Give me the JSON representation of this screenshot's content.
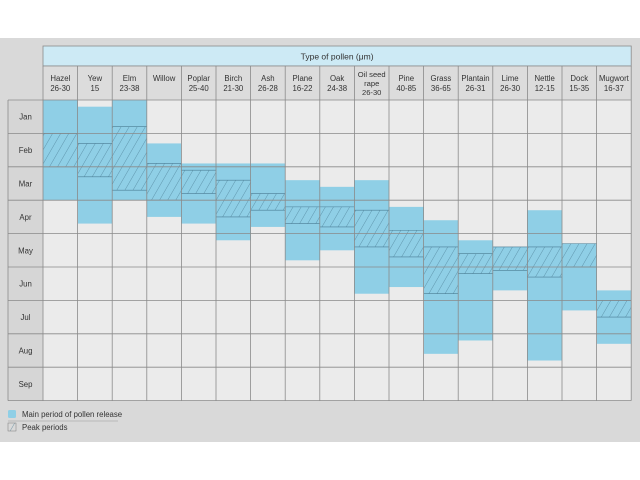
{
  "chart_data": {
    "type": "table",
    "title": "Type of pollen (μm)",
    "months": [
      "Jan",
      "Feb",
      "Mar",
      "Apr",
      "May",
      "Jun",
      "Jul",
      "Aug",
      "Sep"
    ],
    "colors": {
      "main": "#8fcfe6",
      "grid": "#8a8a8a",
      "panel": "#d9d9d9",
      "header_bar": "#cdeaf5"
    },
    "pollens": [
      {
        "name": "Hazel",
        "size": "26-30",
        "main": [
          0.0,
          3.0
        ],
        "peak": [
          1.0,
          2.0
        ]
      },
      {
        "name": "Yew",
        "size": "15",
        "main": [
          0.2,
          3.7
        ],
        "peak": [
          1.3,
          2.3
        ]
      },
      {
        "name": "Elm",
        "size": "23-38",
        "main": [
          -0.4,
          3.0
        ],
        "peak": [
          0.8,
          2.7
        ]
      },
      {
        "name": "Willow",
        "size": "",
        "main": [
          1.3,
          3.5
        ],
        "peak": [
          1.9,
          3.0
        ]
      },
      {
        "name": "Poplar",
        "size": "25-40",
        "main": [
          1.9,
          3.7
        ],
        "peak": [
          2.1,
          2.8
        ]
      },
      {
        "name": "Birch",
        "size": "21-30",
        "main": [
          1.9,
          4.2
        ],
        "peak": [
          2.4,
          3.5
        ]
      },
      {
        "name": "Ash",
        "size": "26-28",
        "main": [
          1.9,
          3.8
        ],
        "peak": [
          2.8,
          3.3
        ]
      },
      {
        "name": "Plane",
        "size": "16-22",
        "main": [
          2.4,
          4.8
        ],
        "peak": [
          3.2,
          3.7
        ]
      },
      {
        "name": "Oak",
        "size": "24-38",
        "main": [
          2.6,
          4.5
        ],
        "peak": [
          3.2,
          3.8
        ]
      },
      {
        "name": "Oil seed rape",
        "size": "26-30",
        "main": [
          2.4,
          5.8
        ],
        "peak": [
          3.3,
          4.4
        ]
      },
      {
        "name": "Pine",
        "size": "40-85",
        "main": [
          3.2,
          5.6
        ],
        "peak": [
          3.9,
          4.7
        ]
      },
      {
        "name": "Grass",
        "size": "36-65",
        "main": [
          3.6,
          7.6
        ],
        "peak": [
          4.4,
          5.8
        ]
      },
      {
        "name": "Plantain",
        "size": "26-31",
        "main": [
          4.2,
          7.2
        ],
        "peak": [
          4.6,
          5.2
        ]
      },
      {
        "name": "Lime",
        "size": "26-30",
        "main": [
          4.4,
          5.7
        ],
        "peak": [
          4.4,
          5.1
        ]
      },
      {
        "name": "Nettle",
        "size": "12-15",
        "main": [
          3.3,
          7.8
        ],
        "peak": [
          4.4,
          5.3
        ]
      },
      {
        "name": "Dock",
        "size": "15-35",
        "main": [
          4.3,
          6.3
        ],
        "peak": [
          4.3,
          5.0
        ]
      },
      {
        "name": "Mugwort",
        "size": "16-37",
        "main": [
          5.7,
          7.3
        ],
        "peak": [
          6.0,
          6.5
        ]
      }
    ],
    "legend": {
      "main_label": "Main period of pollen release",
      "peak_label": "Peak periods",
      "placement": "bottom-left"
    }
  }
}
